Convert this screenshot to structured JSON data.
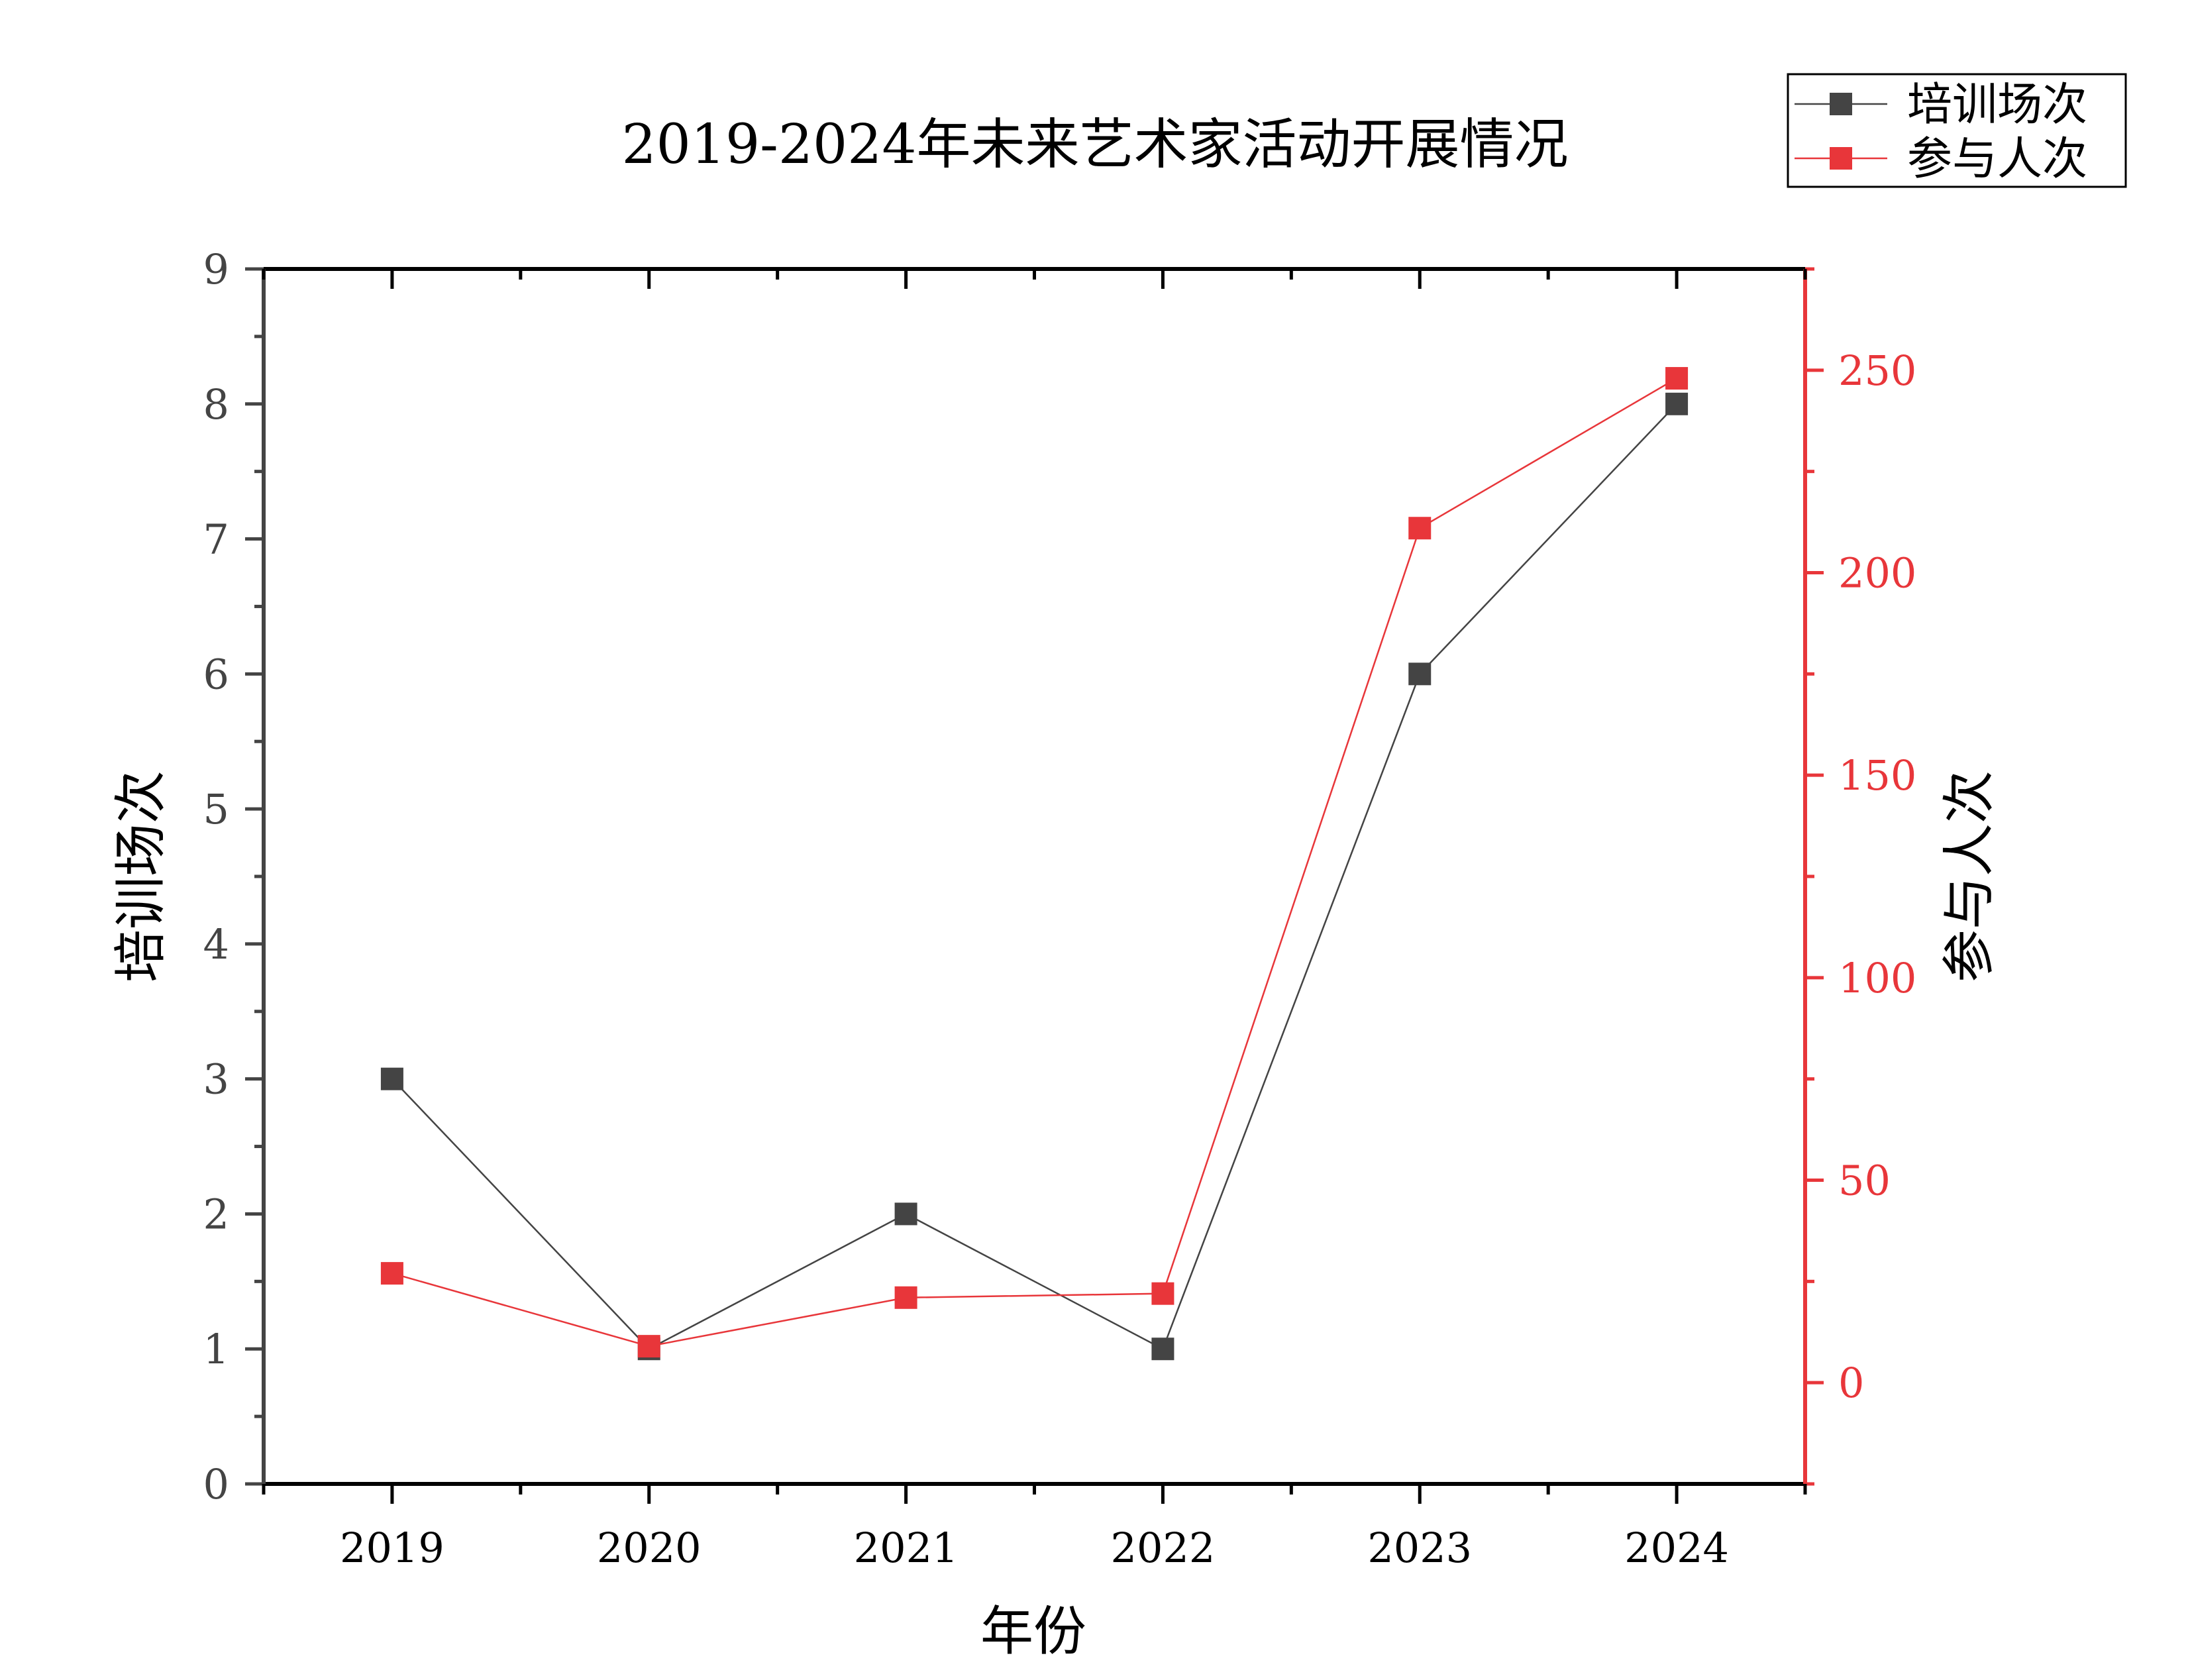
{
  "chart_data": {
    "type": "line",
    "title": "2019-2024年未来艺术家活动开展情况",
    "xlabel": "年份",
    "ylabel": "培训场次",
    "ylabel_right": "参与人次",
    "categories": [
      "2019",
      "2020",
      "2021",
      "2022",
      "2023",
      "2024"
    ],
    "x_ticks": [
      "2019",
      "2020",
      "2021",
      "2022",
      "2023",
      "2024"
    ],
    "y_left": {
      "lim": [
        0,
        9
      ],
      "ticks": [
        "0",
        "1",
        "2",
        "3",
        "4",
        "5",
        "6",
        "7",
        "8",
        "9"
      ]
    },
    "y_right": {
      "lim": [
        -25,
        275
      ],
      "ticks": [
        "0",
        "50",
        "100",
        "150",
        "200",
        "250"
      ],
      "color": "#e8363a"
    },
    "series": [
      {
        "name": "培训场次",
        "axis": "left",
        "color": "#444444",
        "values": [
          3,
          1,
          2,
          1,
          6,
          8
        ]
      },
      {
        "name": "参与人次",
        "axis": "right",
        "color": "#e8363a",
        "values": [
          27,
          9,
          21,
          22,
          211,
          248
        ]
      }
    ],
    "legend_position": "top-right",
    "grid": false
  }
}
